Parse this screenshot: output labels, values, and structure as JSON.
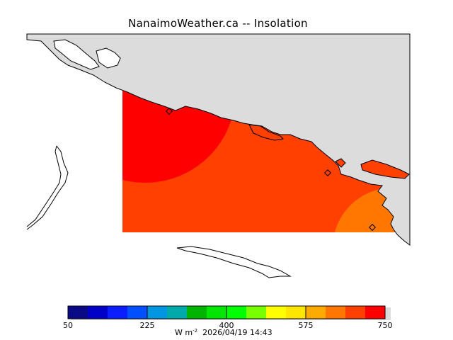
{
  "title": "NanaimoWeather.ca -- Insolation",
  "colors": {
    "land": "#dcdcdc",
    "water": "#ffffff",
    "coastline": "#000000",
    "field_bands": [
      "#ff0000",
      "#ff4000",
      "#ff7700"
    ]
  },
  "colorbar": {
    "min": 50,
    "max": 750,
    "tick_labels": [
      "50",
      "225",
      "400",
      "575",
      "750"
    ],
    "tick_values": [
      50,
      225,
      400,
      575,
      750
    ],
    "colors": [
      "#0a0a87",
      "#0000c8",
      "#0a1eff",
      "#0050ff",
      "#0096e1",
      "#00aaaa",
      "#00b400",
      "#00e600",
      "#00ff00",
      "#78ff00",
      "#ffff00",
      "#ffe600",
      "#ffaa00",
      "#ff7700",
      "#ff4000",
      "#ff0000"
    ],
    "units_prefix": "W m",
    "units_exponent": "-2",
    "timestamp": "2026/04/19 14:43"
  }
}
